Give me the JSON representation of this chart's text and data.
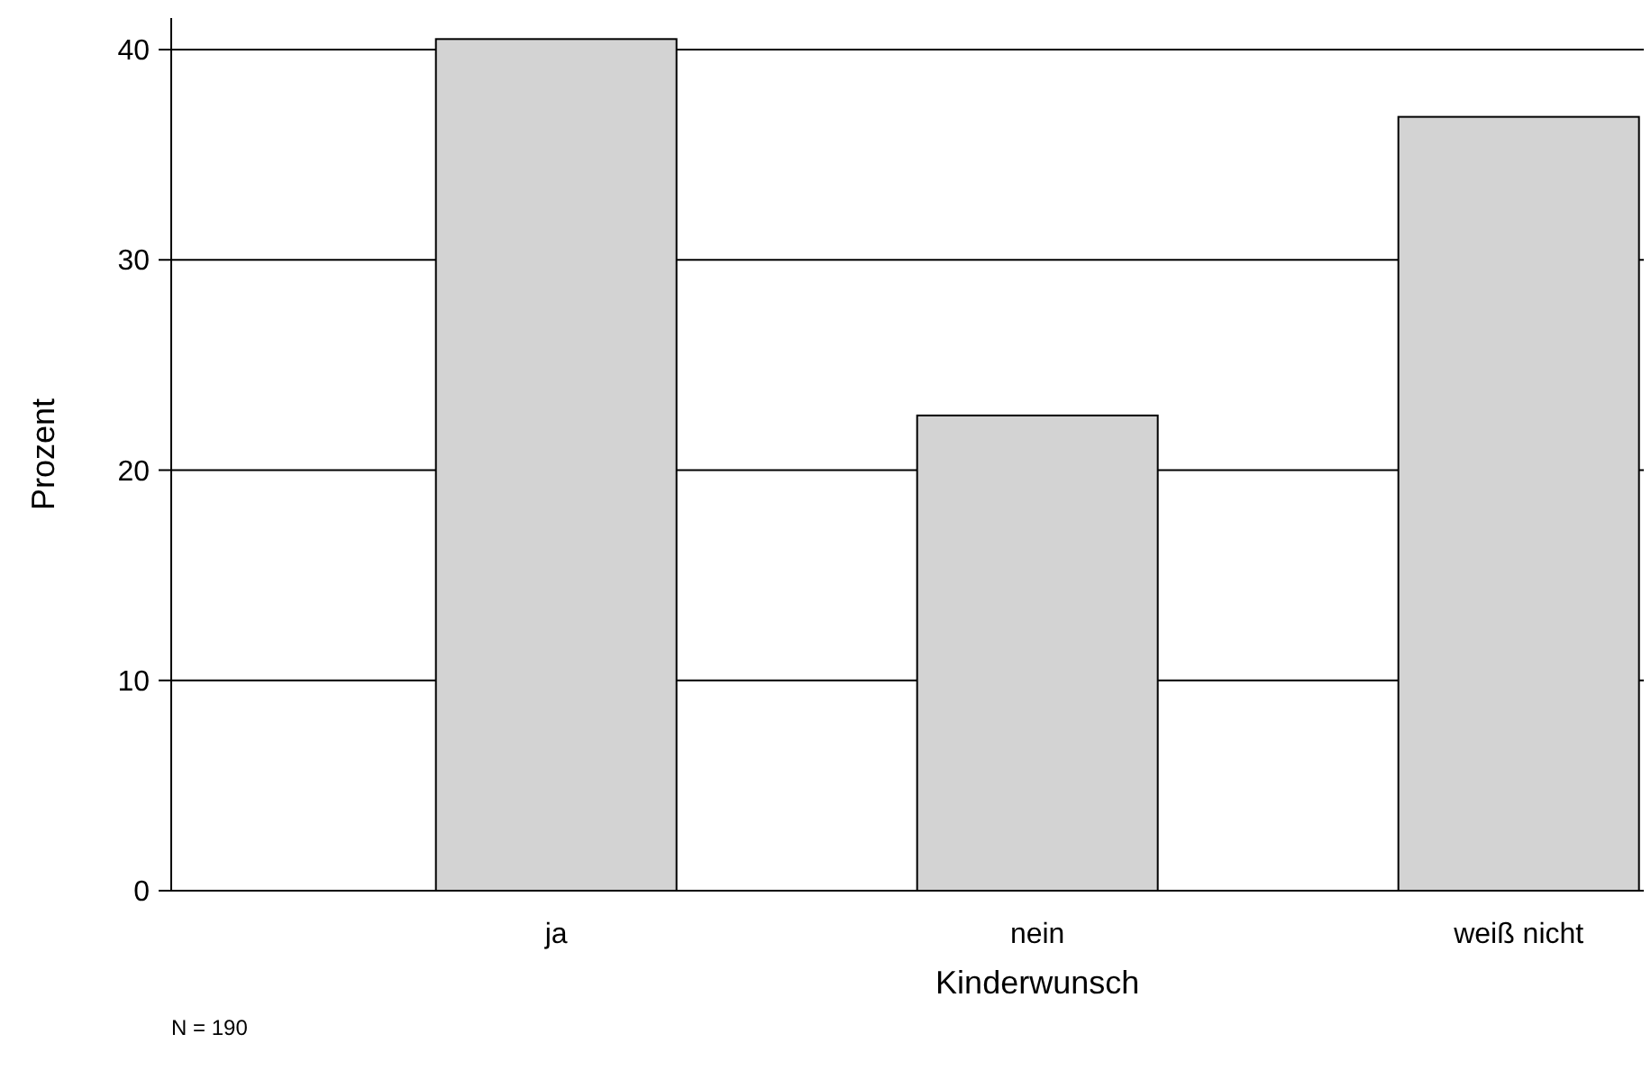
{
  "chart_data": {
    "type": "bar",
    "xlabel": "Kinderwunsch",
    "ylabel": "Prozent",
    "categories": [
      "ja",
      "nein",
      "weiß nicht"
    ],
    "values": [
      40.5,
      22.6,
      36.8
    ],
    "color": "#d3d3d3",
    "ylim": [
      0,
      41.5
    ],
    "yticks": [
      0,
      10,
      20,
      30,
      40
    ],
    "grid": "y",
    "annotations": [
      "N = 190"
    ]
  }
}
